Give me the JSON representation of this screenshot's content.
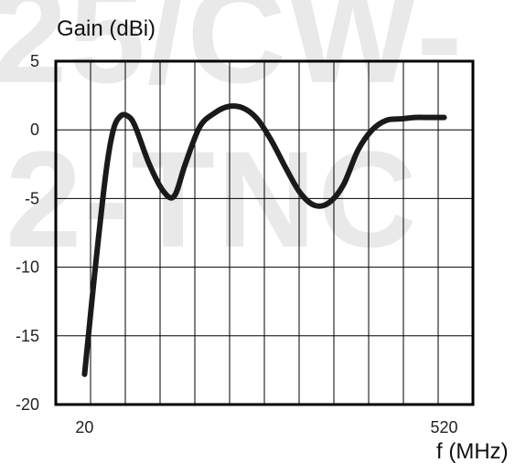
{
  "chart_data": {
    "type": "line",
    "title": "",
    "ylabel": "Gain (dBi)",
    "xlabel": "f (MHz)",
    "xlim": [
      -20,
      560
    ],
    "ylim": [
      -20,
      5
    ],
    "x_tick_labels": [
      {
        "value": 20,
        "label": "20"
      },
      {
        "value": 520,
        "label": "520"
      }
    ],
    "y_tick_labels": [
      {
        "value": 5,
        "label": "5"
      },
      {
        "value": 0,
        "label": "0"
      },
      {
        "value": -5,
        "label": "-5"
      },
      {
        "value": -10,
        "label": "-10"
      },
      {
        "value": -15,
        "label": "-15"
      },
      {
        "value": -20,
        "label": "-20"
      }
    ],
    "grid": true,
    "watermark_lines": [
      "25/CW-",
      "2-TNC"
    ],
    "series": [
      {
        "x": [
          20,
          35,
          50,
          60,
          70,
          80,
          90,
          110,
          130,
          145,
          160,
          180,
          200,
          220,
          240,
          260,
          280,
          300,
          320,
          340,
          360,
          380,
          400,
          420,
          440,
          460,
          480,
          500,
          520
        ],
        "y": [
          -17.8,
          -10,
          -3,
          0,
          1,
          1,
          0.3,
          -2.5,
          -4.5,
          -4.8,
          -2.5,
          0.2,
          1.2,
          1.7,
          1.6,
          0.8,
          -0.8,
          -2.8,
          -4.6,
          -5.5,
          -5.3,
          -4,
          -1.5,
          0,
          0.7,
          0.8,
          0.9,
          0.9,
          0.9
        ]
      }
    ],
    "colors": {
      "background": "#ffffff",
      "grid": "#000000",
      "curve": "#1a1a1a",
      "watermark": "#e9e9e9"
    }
  }
}
